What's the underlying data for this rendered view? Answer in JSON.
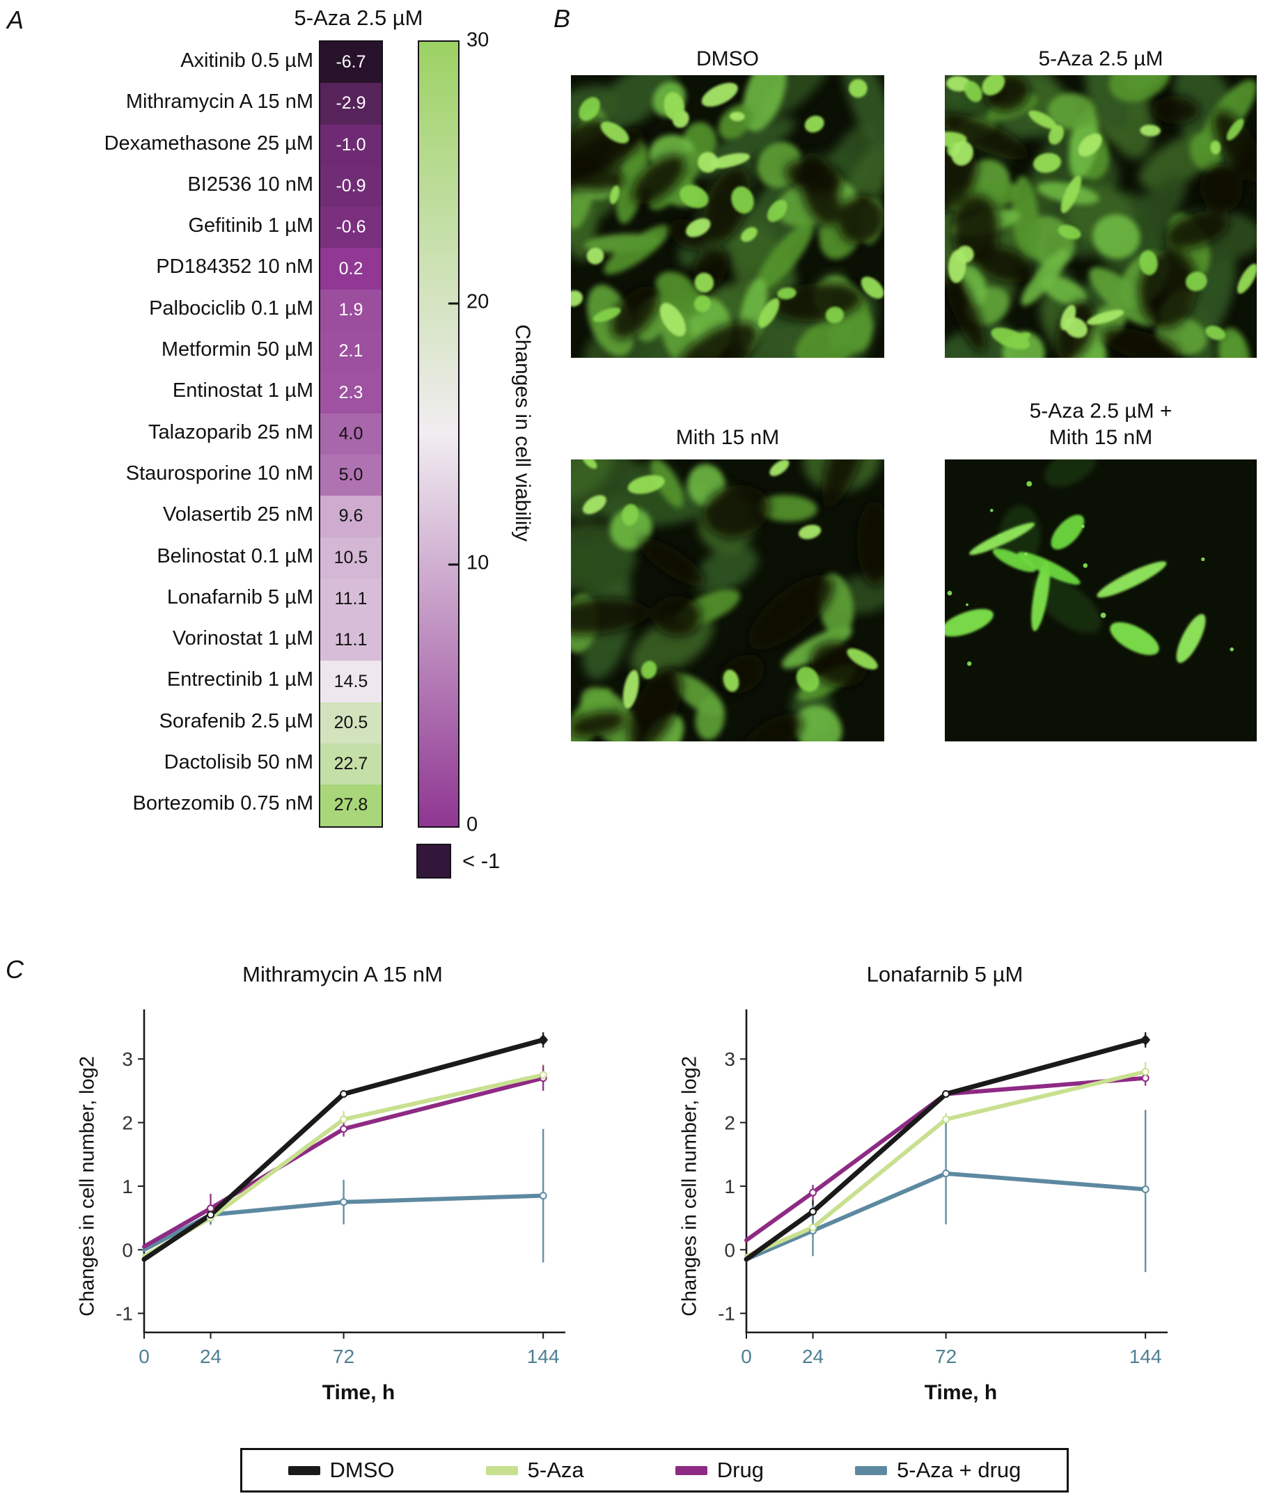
{
  "figure": {
    "panel_a_label": "A",
    "panel_b_label": "B",
    "panel_c_label": "C"
  },
  "panel_a": {
    "colorbar": {
      "label": "Changes in cell viability",
      "ticks": [
        30,
        20,
        10,
        0
      ],
      "max": 30,
      "min": 0,
      "color_top": "#9cd263",
      "color_mid": "#f1edf1",
      "color_bottom": "#8f3692"
    },
    "legend_below": {
      "label": "< -1",
      "color": "#33173a"
    }
  },
  "panel_b": {
    "images": [
      {
        "title": "DMSO",
        "density": "dense"
      },
      {
        "title": "5-Aza 2.5 µM",
        "density": "dense"
      },
      {
        "title": "Mith 15 nM",
        "density": "medium"
      },
      {
        "title": "5-Aza 2.5 µM +",
        "title_line2": "Mith 15 nM",
        "density": "sparse"
      }
    ]
  },
  "panel_c": {
    "axis": {
      "x_tick_color": "#4e7f93",
      "y_tick_color": "#333333"
    }
  },
  "legend": {
    "items": [
      {
        "label": "DMSO",
        "color": "#1a1a1a"
      },
      {
        "label": "5-Aza",
        "color": "#c8e08f"
      },
      {
        "label": "Drug",
        "color": "#8e2a84"
      },
      {
        "label": "5-Aza + drug",
        "color": "#5d89a0"
      }
    ]
  },
  "chart_data": [
    {
      "type": "heatmap",
      "title": "5-Aza 2.5 µM",
      "colorbar_label": "Changes in cell viability",
      "categories": [
        "Axitinib 0.5 µM",
        "Mithramycin A 15 nM",
        "Dexamethasone 25 µM",
        "BI2536 10 nM",
        "Gefitinib 1 µM",
        "PD184352 10 nM",
        "Palbociclib 0.1 µM",
        "Metformin 50 µM",
        "Entinostat 1 µM",
        "Talazoparib 25 nM",
        "Staurosporine 10 nM",
        "Volasertib 25 nM",
        "Belinostat 0.1 µM",
        "Lonafarnib 5 µM",
        "Vorinostat 1 µM",
        "Entrectinib 1 µM",
        "Sorafenib 2.5 µM",
        "Dactolisib 50 nM",
        "Bortezomib 0.75 nM"
      ],
      "values": [
        -6.7,
        -2.9,
        -1.0,
        -0.9,
        -0.6,
        0.2,
        1.9,
        2.1,
        2.3,
        4.0,
        5.0,
        9.6,
        10.5,
        11.1,
        11.1,
        14.5,
        20.5,
        22.7,
        27.8
      ],
      "colorbar_ticks": [
        30,
        20,
        10,
        0
      ],
      "colorbar_range": [
        0,
        30
      ],
      "below_range_label": "< -1"
    },
    {
      "type": "line",
      "title": "Mithramycin A 15 nM",
      "xlabel": "Time, h",
      "ylabel": "Changes in cell number, log2",
      "x": [
        0,
        24,
        72,
        144
      ],
      "yticks": [
        -1,
        0,
        1,
        2,
        3
      ],
      "ylim": [
        -1.3,
        3.78
      ],
      "series": [
        {
          "name": "DMSO",
          "color": "#1a1a1a",
          "values": [
            -0.15,
            0.55,
            2.45,
            3.3
          ],
          "err": [
            null,
            [
              0.4,
              0.7
            ],
            null,
            [
              3.18,
              3.42
            ]
          ]
        },
        {
          "name": "5-Aza",
          "color": "#c8e08f",
          "values": [
            -0.1,
            0.5,
            2.05,
            2.75
          ],
          "err": [
            null,
            [
              0.38,
              0.62
            ],
            [
              1.92,
              2.18
            ],
            [
              2.58,
              2.92
            ]
          ]
        },
        {
          "name": "Drug",
          "color": "#8e2a84",
          "values": [
            0.05,
            0.65,
            1.9,
            2.7
          ],
          "err": [
            null,
            [
              0.42,
              0.88
            ],
            [
              1.78,
              2.02
            ],
            [
              2.5,
              2.9
            ]
          ]
        },
        {
          "name": "5-Aza + drug",
          "color": "#5d89a0",
          "values": [
            0.0,
            0.55,
            0.75,
            0.85
          ],
          "err": [
            null,
            [
              0.4,
              0.7
            ],
            [
              0.4,
              1.1
            ],
            [
              -0.2,
              1.9
            ]
          ]
        }
      ]
    },
    {
      "type": "line",
      "title": "Lonafarnib 5 µM",
      "xlabel": "Time, h",
      "ylabel": "Changes in cell number, log2",
      "x": [
        0,
        24,
        72,
        144
      ],
      "yticks": [
        -1,
        0,
        1,
        2,
        3
      ],
      "ylim": [
        -1.3,
        3.78
      ],
      "series": [
        {
          "name": "DMSO",
          "color": "#1a1a1a",
          "values": [
            -0.15,
            0.6,
            2.45,
            3.3
          ],
          "err": [
            null,
            [
              0.42,
              0.78
            ],
            null,
            [
              3.18,
              3.42
            ]
          ]
        },
        {
          "name": "5-Aza",
          "color": "#c8e08f",
          "values": [
            -0.1,
            0.35,
            2.05,
            2.8
          ],
          "err": [
            null,
            [
              0.22,
              0.48
            ],
            [
              1.9,
              2.15
            ],
            [
              2.62,
              2.95
            ]
          ]
        },
        {
          "name": "Drug",
          "color": "#8e2a84",
          "values": [
            0.15,
            0.9,
            2.45,
            2.7
          ],
          "err": [
            null,
            [
              0.78,
              1.02
            ],
            null,
            [
              2.58,
              2.82
            ]
          ]
        },
        {
          "name": "5-Aza + drug",
          "color": "#5d89a0",
          "values": [
            -0.15,
            0.3,
            1.2,
            0.95
          ],
          "err": [
            null,
            [
              -0.1,
              0.7
            ],
            [
              0.4,
              2.0
            ],
            [
              -0.35,
              2.2
            ]
          ]
        }
      ]
    }
  ]
}
